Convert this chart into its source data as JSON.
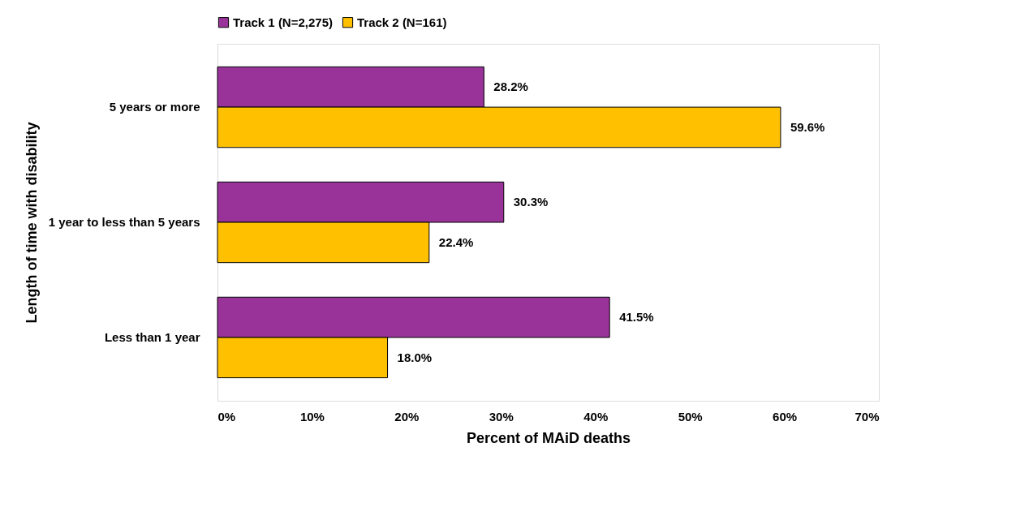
{
  "chart_data": {
    "type": "bar",
    "orientation": "horizontal",
    "xlabel": "Percent of MAiD deaths",
    "ylabel": "Length of time with disability",
    "categories": [
      "5 years or more",
      "1 year to less than 5 years",
      "Less than 1 year"
    ],
    "series": [
      {
        "name": "Track 1 (N=2,275)",
        "color": "#993399",
        "values": [
          28.2,
          30.3,
          41.5
        ],
        "value_labels": [
          "28.2%",
          "30.3%",
          "41.5%"
        ]
      },
      {
        "name": "Track 2 (N=161)",
        "color": "#ffc000",
        "values": [
          59.6,
          22.4,
          18.0
        ],
        "value_labels": [
          "59.6%",
          "22.4%",
          "18.0%"
        ]
      }
    ],
    "xlim": [
      0,
      70
    ],
    "xticks": [
      {
        "value": 0,
        "label": "0%"
      },
      {
        "value": 10,
        "label": "10%"
      },
      {
        "value": 20,
        "label": "20%"
      },
      {
        "value": 30,
        "label": "30%"
      },
      {
        "value": 40,
        "label": "40%"
      },
      {
        "value": 50,
        "label": "50%"
      },
      {
        "value": 60,
        "label": "60%"
      },
      {
        "value": 70,
        "label": "70%"
      }
    ],
    "grid": false,
    "legend": "top"
  }
}
